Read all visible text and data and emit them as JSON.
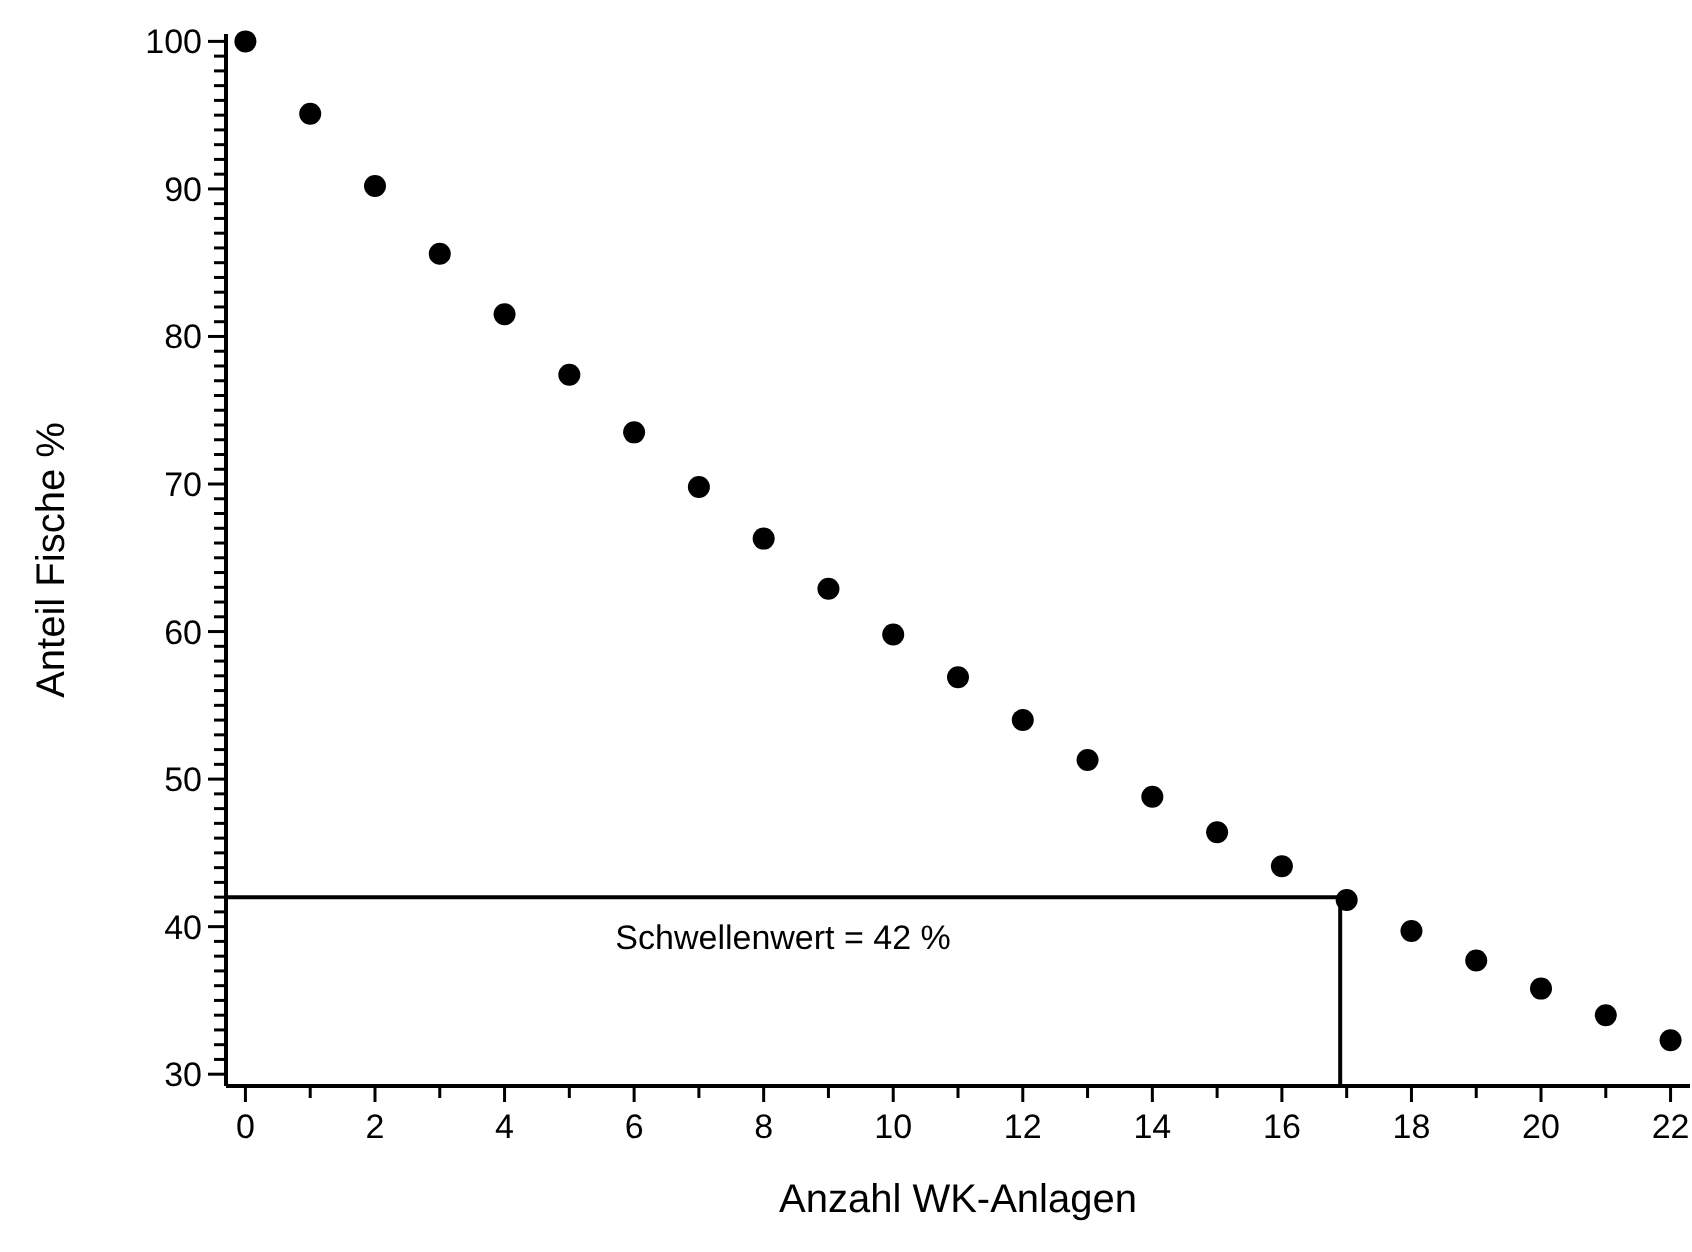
{
  "chart_data": {
    "type": "scatter",
    "xlabel": "Anzahl WK-Anlagen",
    "ylabel": "Anteil Fische %",
    "x": [
      0,
      1,
      2,
      3,
      4,
      5,
      6,
      7,
      8,
      9,
      10,
      11,
      12,
      13,
      14,
      15,
      16,
      17,
      18,
      19,
      20,
      21,
      22
    ],
    "series": [
      {
        "color": "#000000",
        "values": [
          100,
          95.1,
          90.2,
          85.6,
          81.5,
          77.4,
          73.5,
          69.8,
          66.3,
          62.9,
          59.8,
          56.9,
          54.0,
          51.3,
          48.8,
          46.4,
          44.1,
          41.8,
          39.7,
          37.7,
          35.8,
          34.0,
          32.3
        ]
      }
    ],
    "marker": "circle",
    "xlim": [
      -0.3,
      22.3
    ],
    "xticks": [
      0,
      {
        "value": 1,
        "label": null
      },
      2,
      {
        "value": 3,
        "label": null
      },
      4,
      {
        "value": 5,
        "label": null
      },
      6,
      {
        "value": 7,
        "label": null
      },
      8,
      {
        "value": 9,
        "label": null
      },
      10,
      {
        "value": 11,
        "label": null
      },
      12,
      {
        "value": 13,
        "label": null
      },
      14,
      {
        "value": 15,
        "label": null
      },
      16,
      {
        "value": 17,
        "label": null
      },
      18,
      {
        "value": 19,
        "label": null
      },
      20,
      {
        "value": 21,
        "label": null
      },
      22
    ],
    "ylim": [
      29.2,
      100.5
    ],
    "yticks": [
      30,
      {
        "value": 31,
        "label": null
      },
      {
        "value": 32,
        "label": null
      },
      {
        "value": 33,
        "label": null
      },
      {
        "value": 34,
        "label": null
      },
      {
        "value": 35,
        "label": null
      },
      {
        "value": 36,
        "label": null
      },
      {
        "value": 37,
        "label": null
      },
      {
        "value": 38,
        "label": null
      },
      {
        "value": 39,
        "label": null
      },
      40,
      {
        "value": 41,
        "label": null
      },
      {
        "value": 42,
        "label": null
      },
      {
        "value": 43,
        "label": null
      },
      {
        "value": 44,
        "label": null
      },
      {
        "value": 45,
        "label": null
      },
      {
        "value": 46,
        "label": null
      },
      {
        "value": 47,
        "label": null
      },
      {
        "value": 48,
        "label": null
      },
      {
        "value": 49,
        "label": null
      },
      50,
      {
        "value": 51,
        "label": null
      },
      {
        "value": 52,
        "label": null
      },
      {
        "value": 53,
        "label": null
      },
      {
        "value": 54,
        "label": null
      },
      {
        "value": 55,
        "label": null
      },
      {
        "value": 56,
        "label": null
      },
      {
        "value": 57,
        "label": null
      },
      {
        "value": 58,
        "label": null
      },
      {
        "value": 59,
        "label": null
      },
      60,
      {
        "value": 61,
        "label": null
      },
      {
        "value": 62,
        "label": null
      },
      {
        "value": 63,
        "label": null
      },
      {
        "value": 64,
        "label": null
      },
      {
        "value": 65,
        "label": null
      },
      {
        "value": 66,
        "label": null
      },
      {
        "value": 67,
        "label": null
      },
      {
        "value": 68,
        "label": null
      },
      {
        "value": 69,
        "label": null
      },
      70,
      {
        "value": 71,
        "label": null
      },
      {
        "value": 72,
        "label": null
      },
      {
        "value": 73,
        "label": null
      },
      {
        "value": 74,
        "label": null
      },
      {
        "value": 75,
        "label": null
      },
      {
        "value": 76,
        "label": null
      },
      {
        "value": 77,
        "label": null
      },
      {
        "value": 78,
        "label": null
      },
      {
        "value": 79,
        "label": null
      },
      80,
      {
        "value": 81,
        "label": null
      },
      {
        "value": 82,
        "label": null
      },
      {
        "value": 83,
        "label": null
      },
      {
        "value": 84,
        "label": null
      },
      {
        "value": 85,
        "label": null
      },
      {
        "value": 86,
        "label": null
      },
      {
        "value": 87,
        "label": null
      },
      {
        "value": 88,
        "label": null
      },
      {
        "value": 89,
        "label": null
      },
      90,
      {
        "value": 91,
        "label": null
      },
      {
        "value": 92,
        "label": null
      },
      {
        "value": 93,
        "label": null
      },
      {
        "value": 94,
        "label": null
      },
      {
        "value": 95,
        "label": null
      },
      {
        "value": 96,
        "label": null
      },
      {
        "value": 97,
        "label": null
      },
      {
        "value": 98,
        "label": null
      },
      {
        "value": 99,
        "label": null
      },
      100
    ],
    "ref_lines": [
      {
        "axis": "y",
        "value": 42,
        "label": "Schwellenwert = 42 %",
        "color": "#000000"
      },
      {
        "axis": "x",
        "value": 16.9,
        "color": "#000000"
      }
    ]
  }
}
